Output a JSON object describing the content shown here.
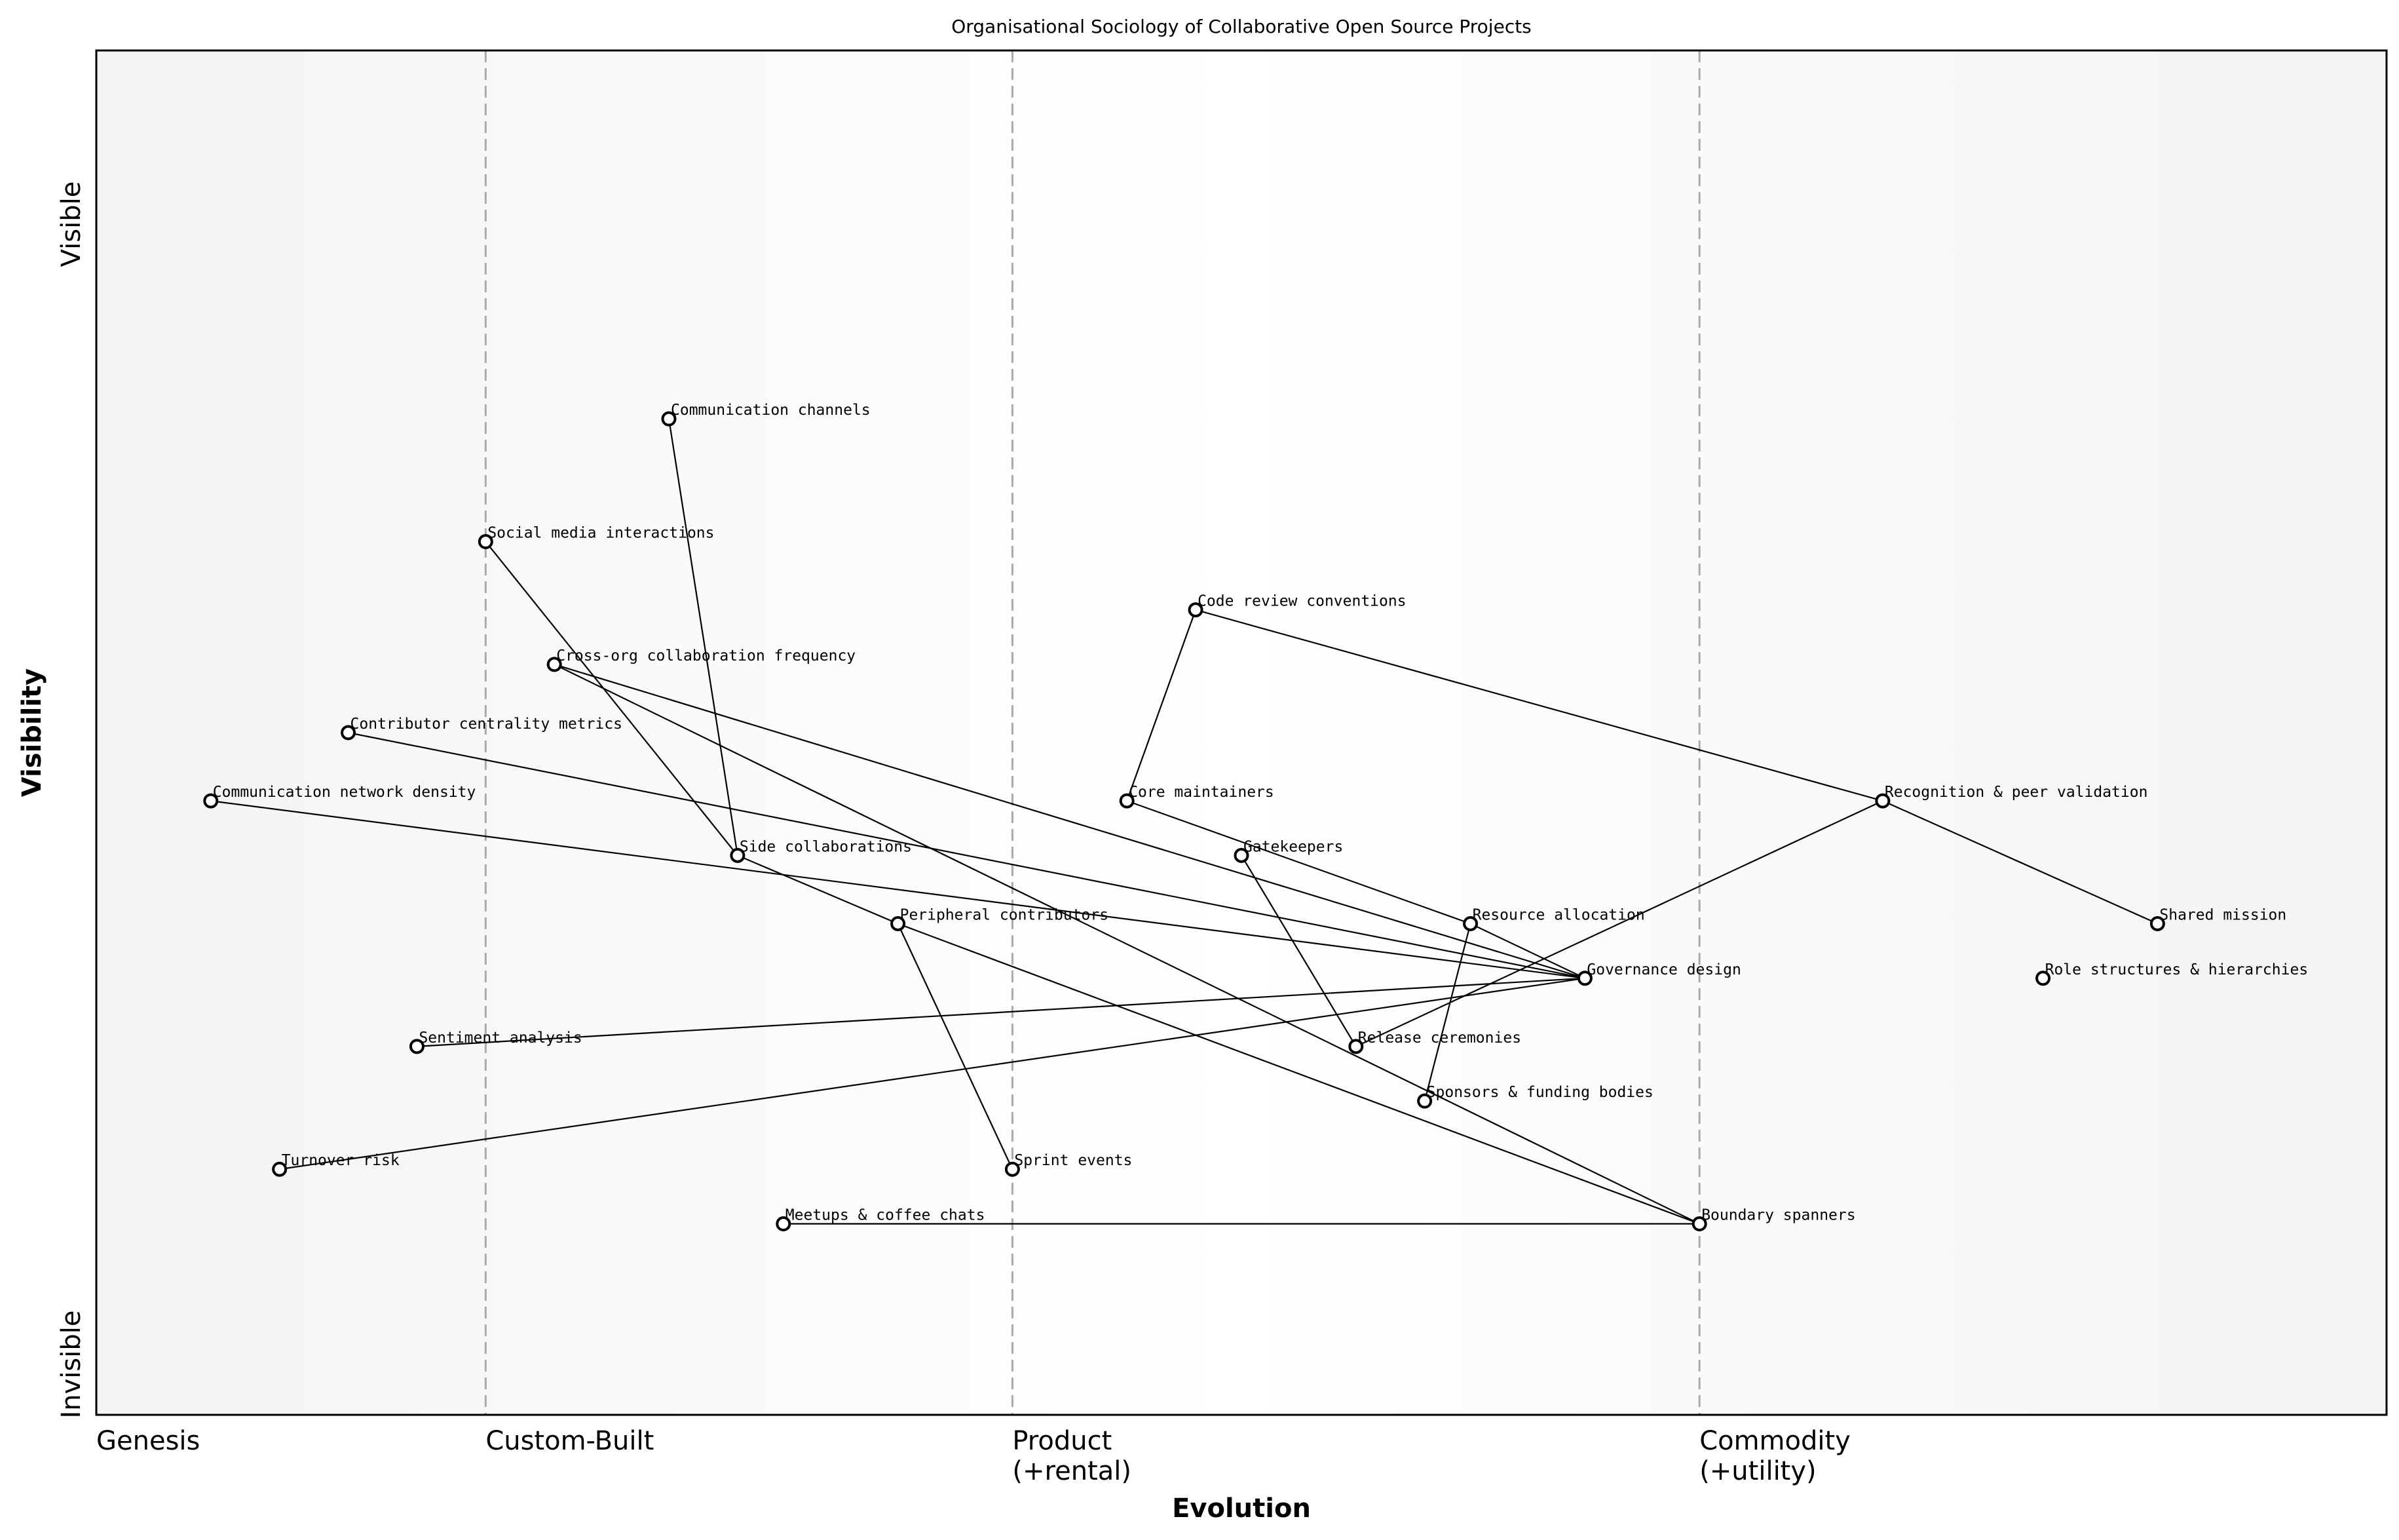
{
  "title": "Organisational Sociology of Collaborative Open Source Projects",
  "x_axis": {
    "label": "Evolution",
    "stages": [
      {
        "label_lines": [
          "Genesis"
        ],
        "at": 0.0
      },
      {
        "label_lines": [
          "Custom-Built"
        ],
        "at": 0.17
      },
      {
        "label_lines": [
          "Product",
          "(+rental)"
        ],
        "at": 0.4
      },
      {
        "label_lines": [
          "Commodity",
          "(+utility)"
        ],
        "at": 0.7
      }
    ]
  },
  "y_axis": {
    "label": "Visibility",
    "top_label": "Visible",
    "bottom_label": "Invisible"
  },
  "colors": {
    "background_edge": "#f3f3f3",
    "background_center": "#ffffff",
    "stage_line": "#aaaaaa",
    "node_fill": "#ffffff",
    "node_stroke": "#000000"
  },
  "components": [
    {
      "name": "Communication channels",
      "evolution": 0.25,
      "visibility": 0.73
    },
    {
      "name": "Social media interactions",
      "evolution": 0.17,
      "visibility": 0.64
    },
    {
      "name": "Code review conventions",
      "evolution": 0.48,
      "visibility": 0.59
    },
    {
      "name": "Cross-org collaboration frequency",
      "evolution": 0.2,
      "visibility": 0.55
    },
    {
      "name": "Contributor centrality metrics",
      "evolution": 0.11,
      "visibility": 0.5
    },
    {
      "name": "Communication network density",
      "evolution": 0.05,
      "visibility": 0.45
    },
    {
      "name": "Core maintainers",
      "evolution": 0.45,
      "visibility": 0.45
    },
    {
      "name": "Recognition & peer validation",
      "evolution": 0.78,
      "visibility": 0.45
    },
    {
      "name": "Side collaborations",
      "evolution": 0.28,
      "visibility": 0.41
    },
    {
      "name": "Gatekeepers",
      "evolution": 0.5,
      "visibility": 0.41
    },
    {
      "name": "Peripheral contributors",
      "evolution": 0.35,
      "visibility": 0.36
    },
    {
      "name": "Resource allocation",
      "evolution": 0.6,
      "visibility": 0.36
    },
    {
      "name": "Shared mission",
      "evolution": 0.9,
      "visibility": 0.36
    },
    {
      "name": "Governance design",
      "evolution": 0.65,
      "visibility": 0.32
    },
    {
      "name": "Role structures & hierarchies",
      "evolution": 0.85,
      "visibility": 0.32
    },
    {
      "name": "Sentiment analysis",
      "evolution": 0.14,
      "visibility": 0.27
    },
    {
      "name": "Release ceremonies",
      "evolution": 0.55,
      "visibility": 0.27
    },
    {
      "name": "Sponsors & funding bodies",
      "evolution": 0.58,
      "visibility": 0.23
    },
    {
      "name": "Turnover risk",
      "evolution": 0.08,
      "visibility": 0.18
    },
    {
      "name": "Sprint events",
      "evolution": 0.4,
      "visibility": 0.18
    },
    {
      "name": "Meetups & coffee chats",
      "evolution": 0.3,
      "visibility": 0.14
    },
    {
      "name": "Boundary spanners",
      "evolution": 0.7,
      "visibility": 0.14
    }
  ],
  "links": [
    [
      "Communication channels",
      "Side collaborations"
    ],
    [
      "Social media interactions",
      "Side collaborations"
    ],
    [
      "Side collaborations",
      "Peripheral contributors"
    ],
    [
      "Cross-org collaboration frequency",
      "Governance design"
    ],
    [
      "Cross-org collaboration frequency",
      "Boundary spanners"
    ],
    [
      "Contributor centrality metrics",
      "Governance design"
    ],
    [
      "Communication network density",
      "Governance design"
    ],
    [
      "Sentiment analysis",
      "Governance design"
    ],
    [
      "Turnover risk",
      "Governance design"
    ],
    [
      "Peripheral contributors",
      "Boundary spanners"
    ],
    [
      "Peripheral contributors",
      "Sprint events"
    ],
    [
      "Meetups & coffee chats",
      "Boundary spanners"
    ],
    [
      "Core maintainers",
      "Code review conventions"
    ],
    [
      "Code review conventions",
      "Recognition & peer validation"
    ],
    [
      "Recognition & peer validation",
      "Shared mission"
    ],
    [
      "Recognition & peer validation",
      "Release ceremonies"
    ],
    [
      "Core maintainers",
      "Resource allocation"
    ],
    [
      "Resource allocation",
      "Governance design"
    ],
    [
      "Resource allocation",
      "Sponsors & funding bodies"
    ],
    [
      "Gatekeepers",
      "Release ceremonies"
    ]
  ]
}
